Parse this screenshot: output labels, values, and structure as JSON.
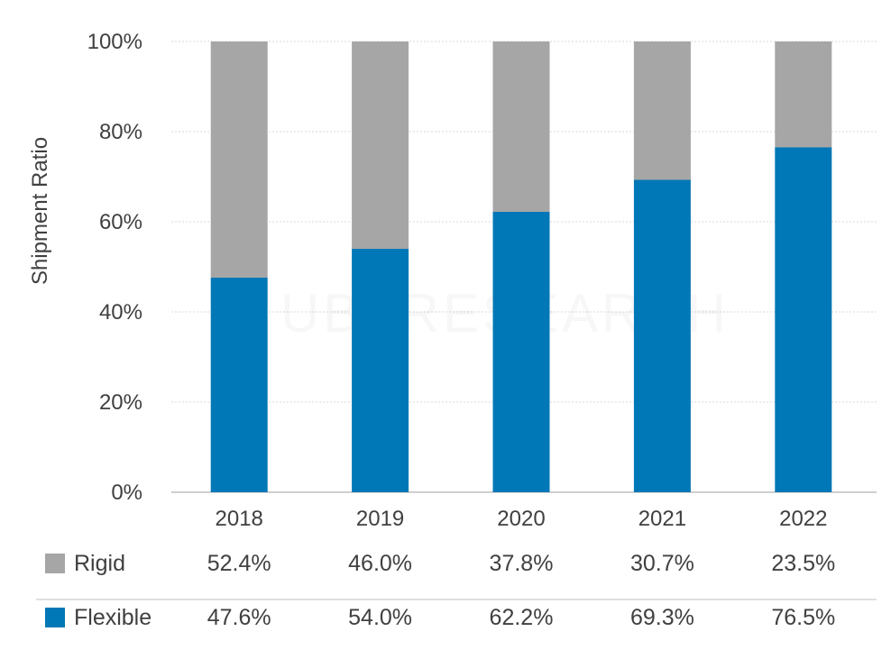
{
  "chart_data": {
    "type": "bar",
    "stacked": true,
    "categories": [
      "2018",
      "2019",
      "2020",
      "2021",
      "2022"
    ],
    "series": [
      {
        "name": "Flexible",
        "values": [
          47.6,
          54.0,
          62.2,
          69.3,
          76.5
        ],
        "color": "#0077b6"
      },
      {
        "name": "Rigid",
        "values": [
          52.4,
          46.0,
          37.8,
          30.7,
          23.5
        ],
        "color": "#a6a6a6"
      }
    ],
    "ylabel": "Shipment Ratio",
    "xlabel": "",
    "ylim": [
      0,
      100
    ],
    "yticks": [
      0,
      20,
      40,
      60,
      80,
      100
    ],
    "ytick_labels": [
      "0%",
      "20%",
      "40%",
      "60%",
      "80%",
      "100%"
    ],
    "grid": true,
    "legend": "data-table below chart"
  },
  "data_table": {
    "rows": [
      {
        "label": "Rigid",
        "color": "#a6a6a6",
        "values": [
          "52.4%",
          "46.0%",
          "37.8%",
          "30.7%",
          "23.5%"
        ]
      },
      {
        "label": "Flexible",
        "color": "#0077b6",
        "values": [
          "47.6%",
          "54.0%",
          "62.2%",
          "69.3%",
          "76.5%"
        ]
      }
    ]
  },
  "watermark": "UBI RESEARCH"
}
